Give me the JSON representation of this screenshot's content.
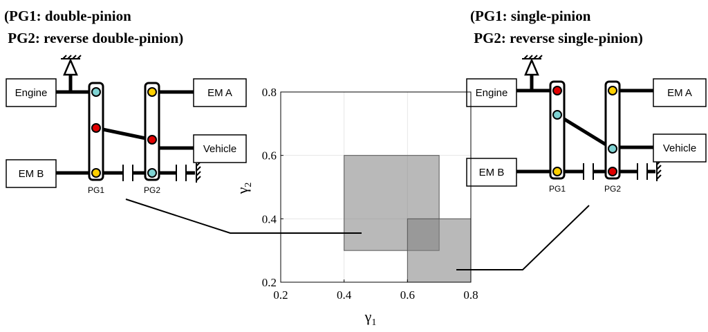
{
  "left_config": {
    "title_line1": "(PG1: double-pinion",
    "title_line2": " PG2: reverse double-pinion)",
    "engine": "Engine",
    "em_a": "EM A",
    "em_b": "EM B",
    "vehicle": "Vehicle",
    "pg1": "PG1",
    "pg2": "PG2"
  },
  "right_config": {
    "title_line1": "(PG1: single-pinion",
    "title_line2": " PG2: reverse single-pinion)",
    "engine": "Engine",
    "em_a": "EM A",
    "em_b": "EM B",
    "vehicle": "Vehicle",
    "pg1": "PG1",
    "pg2": "PG2"
  },
  "colors": {
    "red_node": "#e00000",
    "cyan_node": "#7fd3d3",
    "yellow_node": "#ffd000",
    "region": "#808080"
  },
  "chart_data": {
    "type": "area",
    "xlabel_symbol": "γ",
    "xlabel_sub": "1",
    "ylabel_symbol": "γ",
    "ylabel_sub": "2",
    "xlim": [
      0.2,
      0.8
    ],
    "ylim": [
      0.2,
      0.8
    ],
    "xticks": [
      "0.2",
      "0.4",
      "0.6",
      "0.8"
    ],
    "yticks": [
      "0.2",
      "0.4",
      "0.6",
      "0.8"
    ],
    "grid": true,
    "regions": [
      {
        "x0": 0.4,
        "x1": 0.7,
        "y0": 0.3,
        "y1": 0.6
      },
      {
        "x0": 0.6,
        "x1": 0.8,
        "y0": 0.2,
        "y1": 0.4
      }
    ]
  }
}
